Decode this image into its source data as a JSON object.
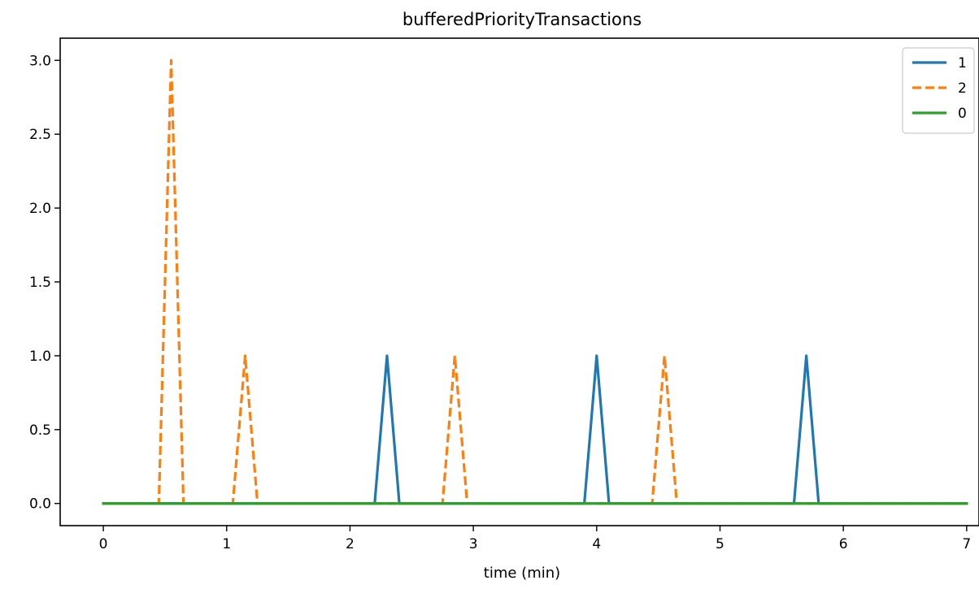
{
  "chart_data": {
    "type": "line",
    "title": "bufferedPriorityTransactions",
    "xlabel": "time (min)",
    "ylabel": "",
    "xlim": [
      -0.35,
      7.1
    ],
    "ylim": [
      -0.15,
      3.15
    ],
    "xticks": [
      0,
      1,
      2,
      3,
      4,
      5,
      6,
      7
    ],
    "xtick_labels": [
      "0",
      "1",
      "2",
      "3",
      "4",
      "5",
      "6",
      "7"
    ],
    "yticks": [
      0.0,
      0.5,
      1.0,
      1.5,
      2.0,
      2.5,
      3.0
    ],
    "ytick_labels": [
      "0.0",
      "0.5",
      "1.0",
      "1.5",
      "2.0",
      "2.5",
      "3.0"
    ],
    "grid": false,
    "legend_position": "top-right",
    "series": [
      {
        "name": "1",
        "color": "#1f77b4",
        "dash": "solid",
        "x": [
          0,
          2.2,
          2.3,
          2.4,
          3.9,
          4.0,
          4.1,
          5.6,
          5.7,
          5.8,
          7.0
        ],
        "y": [
          0,
          0,
          1,
          0,
          0,
          1,
          0,
          0,
          1,
          0,
          0
        ]
      },
      {
        "name": "2",
        "color": "#ff7f0e",
        "dash": "dashed",
        "x": [
          0,
          0.45,
          0.55,
          0.65,
          1.05,
          1.15,
          1.25,
          2.75,
          2.85,
          2.95,
          4.45,
          4.55,
          4.65,
          7.0
        ],
        "y": [
          0,
          0,
          3,
          0,
          0,
          1,
          0,
          0,
          1,
          0,
          0,
          1,
          0,
          0
        ]
      },
      {
        "name": "0",
        "color": "#2ca02c",
        "dash": "solid",
        "x": [
          0,
          7.0
        ],
        "y": [
          0,
          0
        ]
      }
    ]
  }
}
